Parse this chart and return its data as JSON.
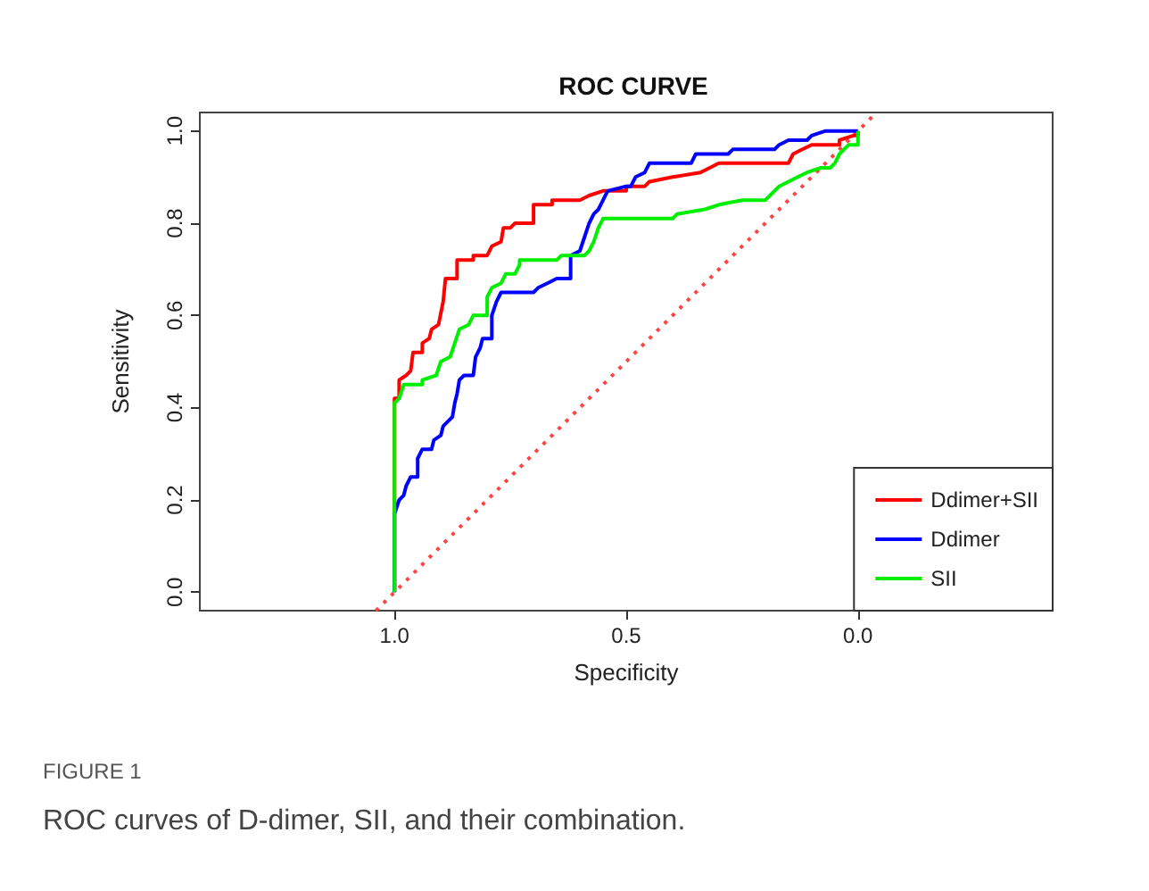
{
  "chart_data": {
    "type": "line",
    "title": "ROC CURVE",
    "xlabel": "Specificity",
    "ylabel": "Sensitivity",
    "xlim": [
      1.42,
      -0.42
    ],
    "ylim": [
      -0.04,
      1.04
    ],
    "xticks": [
      {
        "value": 1,
        "label": "1.0"
      },
      {
        "value": 0.5,
        "label": "0.5"
      },
      {
        "value": 0,
        "label": "0.0"
      }
    ],
    "yticks": [
      {
        "value": 0,
        "label": "0.0"
      },
      {
        "value": 0.2,
        "label": "0.2"
      },
      {
        "value": 0.4,
        "label": "0.4"
      },
      {
        "value": 0.6,
        "label": "0.6"
      },
      {
        "value": 0.8,
        "label": "0.8"
      },
      {
        "value": 1,
        "label": "1.0"
      }
    ],
    "grid": false,
    "legend": "bottom right",
    "marker": "none",
    "annotations": [
      "FIGURE 1",
      "ROC curves of D-dimer, SII, and their combination."
    ],
    "series": [
      {
        "name": "Ddimer+SII",
        "color": "#ff0000",
        "line_style": "solid",
        "x": [
          1,
          1,
          0.99,
          0.99,
          0.975,
          0.965,
          0.96,
          0.94,
          0.94,
          0.925,
          0.92,
          0.905,
          0.895,
          0.89,
          0.865,
          0.865,
          0.83,
          0.83,
          0.8,
          0.79,
          0.77,
          0.765,
          0.75,
          0.74,
          0.7,
          0.7,
          0.66,
          0.66,
          0.6,
          0.58,
          0.55,
          0.5,
          0.5,
          0.46,
          0.45,
          0.4,
          0.34,
          0.32,
          0.3,
          0.15,
          0.14,
          0.12,
          0.1,
          0.04,
          0.04,
          0.01,
          0,
          0
        ],
        "values": [
          0,
          0.42,
          0.42,
          0.46,
          0.47,
          0.48,
          0.52,
          0.52,
          0.54,
          0.55,
          0.57,
          0.58,
          0.63,
          0.68,
          0.68,
          0.72,
          0.72,
          0.73,
          0.73,
          0.75,
          0.76,
          0.79,
          0.79,
          0.8,
          0.8,
          0.84,
          0.84,
          0.85,
          0.85,
          0.86,
          0.87,
          0.87,
          0.88,
          0.88,
          0.89,
          0.9,
          0.91,
          0.92,
          0.93,
          0.93,
          0.95,
          0.96,
          0.97,
          0.97,
          0.98,
          0.99,
          0.99,
          1
        ]
      },
      {
        "name": "Ddimer",
        "color": "#0000ff",
        "line_style": "solid",
        "x": [
          1,
          1,
          0.99,
          0.98,
          0.975,
          0.965,
          0.95,
          0.95,
          0.94,
          0.92,
          0.915,
          0.9,
          0.895,
          0.885,
          0.875,
          0.87,
          0.865,
          0.86,
          0.85,
          0.83,
          0.825,
          0.815,
          0.81,
          0.79,
          0.79,
          0.78,
          0.77,
          0.7,
          0.69,
          0.67,
          0.65,
          0.62,
          0.62,
          0.6,
          0.59,
          0.58,
          0.57,
          0.56,
          0.55,
          0.54,
          0.5,
          0.49,
          0.48,
          0.46,
          0.45,
          0.36,
          0.35,
          0.28,
          0.27,
          0.18,
          0.17,
          0.15,
          0.11,
          0.1,
          0.07,
          0
        ],
        "values": [
          0,
          0.17,
          0.2,
          0.21,
          0.23,
          0.25,
          0.25,
          0.29,
          0.31,
          0.31,
          0.33,
          0.34,
          0.36,
          0.37,
          0.38,
          0.41,
          0.43,
          0.46,
          0.47,
          0.47,
          0.51,
          0.53,
          0.55,
          0.55,
          0.6,
          0.63,
          0.65,
          0.65,
          0.66,
          0.67,
          0.68,
          0.68,
          0.73,
          0.74,
          0.77,
          0.8,
          0.82,
          0.83,
          0.85,
          0.87,
          0.88,
          0.88,
          0.9,
          0.91,
          0.93,
          0.93,
          0.95,
          0.95,
          0.96,
          0.96,
          0.97,
          0.98,
          0.98,
          0.99,
          1,
          1
        ]
      },
      {
        "name": "SII",
        "color": "#00ee00",
        "line_style": "solid",
        "x": [
          1,
          1,
          0.99,
          0.98,
          0.94,
          0.94,
          0.91,
          0.9,
          0.88,
          0.87,
          0.86,
          0.84,
          0.83,
          0.8,
          0.8,
          0.79,
          0.77,
          0.76,
          0.74,
          0.73,
          0.73,
          0.65,
          0.64,
          0.59,
          0.58,
          0.57,
          0.56,
          0.55,
          0.4,
          0.39,
          0.33,
          0.3,
          0.25,
          0.2,
          0.19,
          0.17,
          0.15,
          0.13,
          0.11,
          0.08,
          0.06,
          0.05,
          0.04,
          0.02,
          0,
          0
        ],
        "values": [
          0,
          0.41,
          0.42,
          0.45,
          0.45,
          0.46,
          0.47,
          0.5,
          0.51,
          0.54,
          0.57,
          0.58,
          0.6,
          0.6,
          0.64,
          0.66,
          0.67,
          0.69,
          0.69,
          0.71,
          0.72,
          0.72,
          0.73,
          0.73,
          0.74,
          0.76,
          0.79,
          0.81,
          0.81,
          0.82,
          0.83,
          0.84,
          0.85,
          0.85,
          0.86,
          0.88,
          0.89,
          0.9,
          0.91,
          0.92,
          0.92,
          0.93,
          0.95,
          0.97,
          0.97,
          1
        ]
      },
      {
        "color": "#ff4444",
        "line_style": "dotted",
        "x": [
          1.04,
          -0.04
        ],
        "values": [
          -0.04,
          1.04
        ]
      }
    ]
  }
}
